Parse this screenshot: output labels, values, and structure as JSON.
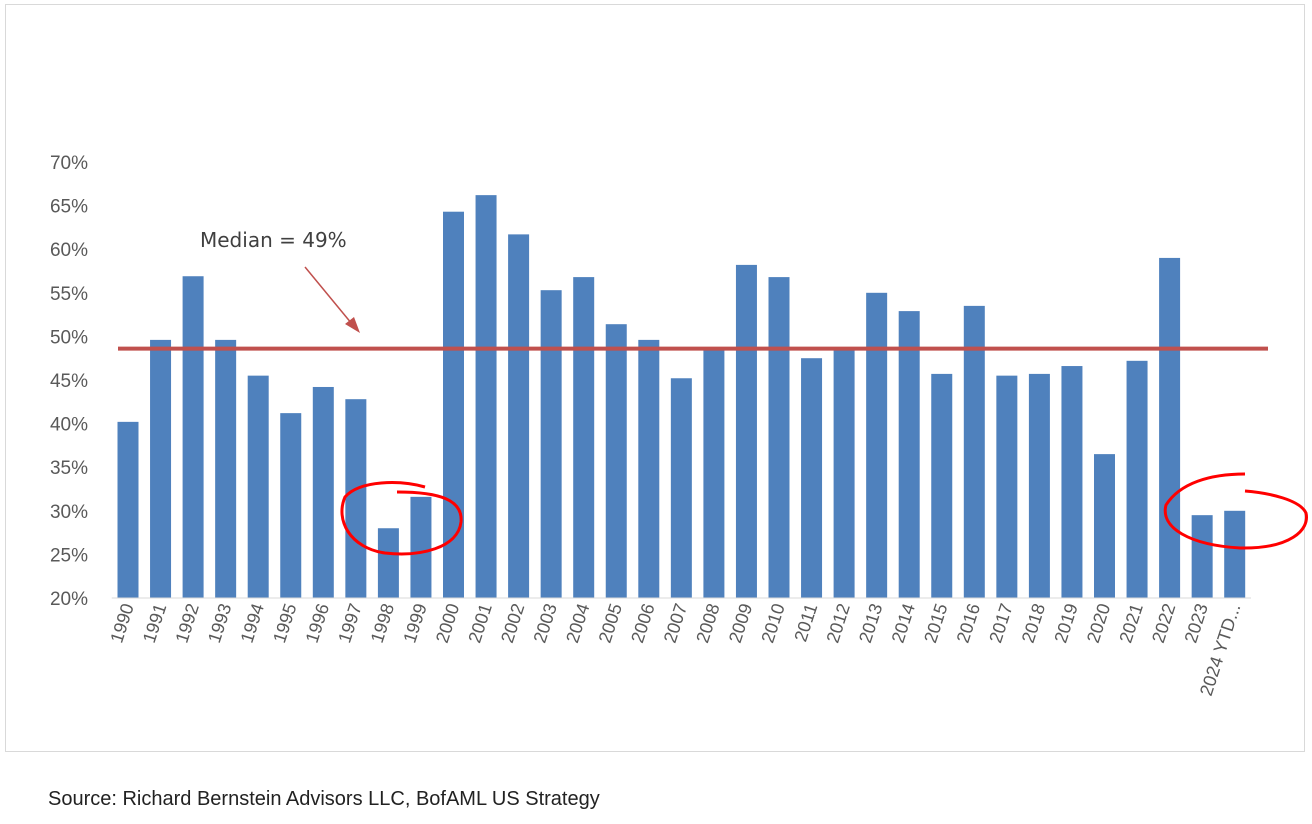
{
  "chart_data": {
    "type": "bar",
    "title": "",
    "xlabel": "",
    "ylabel": "",
    "ylim": [
      20,
      70
    ],
    "yticks": [
      "20%",
      "25%",
      "30%",
      "35%",
      "40%",
      "45%",
      "50%",
      "55%",
      "60%",
      "65%",
      "70%"
    ],
    "ytick_values": [
      20,
      25,
      30,
      35,
      40,
      45,
      50,
      55,
      60,
      65,
      70
    ],
    "grid": false,
    "categories": [
      "1990",
      "1991",
      "1992",
      "1993",
      "1994",
      "1995",
      "1996",
      "1997",
      "1998",
      "1999",
      "2000",
      "2001",
      "2002",
      "2003",
      "2004",
      "2005",
      "2006",
      "2007",
      "2008",
      "2009",
      "2010",
      "2011",
      "2012",
      "2013",
      "2014",
      "2015",
      "2016",
      "2017",
      "2018",
      "2019",
      "2020",
      "2021",
      "2022",
      "2023",
      "2024 YTD..."
    ],
    "values": [
      40.2,
      49.6,
      56.9,
      49.6,
      45.5,
      41.2,
      44.2,
      42.8,
      28.0,
      31.6,
      64.3,
      66.2,
      61.7,
      55.3,
      56.8,
      51.4,
      49.6,
      45.2,
      48.4,
      58.2,
      56.8,
      47.5,
      48.4,
      55.0,
      52.9,
      45.7,
      53.5,
      45.5,
      45.7,
      46.6,
      36.5,
      47.2,
      59.0,
      29.5,
      30.0
    ],
    "bar_color": "#4f81bd",
    "median_line": {
      "value": 48.6,
      "label": "Median = 49%",
      "color": "#c0504d"
    },
    "highlight_circles": {
      "categories": [
        [
          "1998",
          "1999"
        ],
        [
          "2023",
          "2024 YTD..."
        ]
      ],
      "color": "#ff0000"
    }
  },
  "source": "Source: Richard Bernstein Advisors LLC, BofAML US Strategy"
}
